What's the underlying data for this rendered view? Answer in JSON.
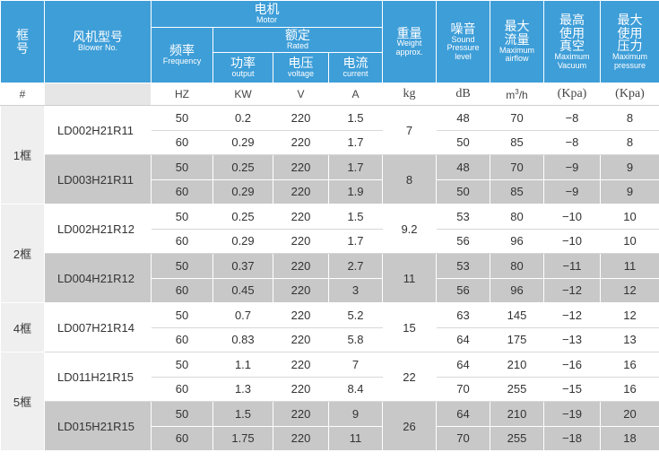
{
  "header": {
    "frame_zh": [
      "框",
      "号"
    ],
    "model_zh": "风机型号",
    "model_en": "Blower No.",
    "motor_zh": "电机",
    "motor_en": "Motor",
    "freq_zh": "频率",
    "freq_en": "Frequency",
    "rated_zh": "额定",
    "rated_en": "Rated",
    "output_zh": "功率",
    "output_en": "output",
    "voltage_zh": "电压",
    "voltage_en": "voltage",
    "current_zh": "电流",
    "current_en": "current",
    "weight_zh": "重量",
    "weight_en": "Weight approx.",
    "noise_zh": "噪音",
    "noise_en": [
      "Sound",
      "Pressure",
      "level"
    ],
    "airflow_zh": [
      "最大",
      "流量"
    ],
    "airflow_en": [
      "Maximum",
      "airflow"
    ],
    "vacuum_zh": [
      "最高",
      "使用",
      "真空"
    ],
    "vacuum_en": [
      "Maximum",
      "Vacuum"
    ],
    "pressure_zh": [
      "最大",
      "使用",
      "压力"
    ],
    "pressure_en": [
      "Maximum",
      "pressure"
    ]
  },
  "units": {
    "frame": "#",
    "freq": "HZ",
    "output": "KW",
    "voltage": "V",
    "current": "A",
    "weight": "kg",
    "noise": "dB",
    "airflow_base": "m",
    "airflow_sup": "3",
    "airflow_tail": "/h",
    "vacuum": "(Kpa)",
    "pressure": "(Kpa)"
  },
  "groups": [
    {
      "frame": "1框",
      "models": [
        {
          "model": "LD002H21R11",
          "weight": "7",
          "rows": [
            {
              "freq": "50",
              "output": "0.2",
              "voltage": "220",
              "current": "1.5",
              "noise": "48",
              "airflow": "70",
              "vacuum": "−8",
              "pressure": "8"
            },
            {
              "freq": "60",
              "output": "0.29",
              "voltage": "220",
              "current": "1.7",
              "noise": "50",
              "airflow": "85",
              "vacuum": "−8",
              "pressure": "8"
            }
          ]
        },
        {
          "model": "LD003H21R11",
          "weight": "8",
          "rows": [
            {
              "freq": "50",
              "output": "0.25",
              "voltage": "220",
              "current": "1.7",
              "noise": "48",
              "airflow": "70",
              "vacuum": "−9",
              "pressure": "9"
            },
            {
              "freq": "60",
              "output": "0.29",
              "voltage": "220",
              "current": "1.9",
              "noise": "50",
              "airflow": "85",
              "vacuum": "−9",
              "pressure": "9"
            }
          ]
        }
      ]
    },
    {
      "frame": "2框",
      "models": [
        {
          "model": "LD002H21R12",
          "weight": "9.2",
          "rows": [
            {
              "freq": "50",
              "output": "0.25",
              "voltage": "220",
              "current": "1.5",
              "noise": "53",
              "airflow": "80",
              "vacuum": "−10",
              "pressure": "10"
            },
            {
              "freq": "60",
              "output": "0.29",
              "voltage": "220",
              "current": "1.7",
              "noise": "56",
              "airflow": "96",
              "vacuum": "−10",
              "pressure": "10"
            }
          ]
        },
        {
          "model": "LD004H21R12",
          "weight": "11",
          "rows": [
            {
              "freq": "50",
              "output": "0.37",
              "voltage": "220",
              "current": "2.7",
              "noise": "53",
              "airflow": "80",
              "vacuum": "−11",
              "pressure": "11"
            },
            {
              "freq": "60",
              "output": "0.45",
              "voltage": "220",
              "current": "3",
              "noise": "56",
              "airflow": "96",
              "vacuum": "−12",
              "pressure": "12"
            }
          ]
        }
      ]
    },
    {
      "frame": "4框",
      "models": [
        {
          "model": "LD007H21R14",
          "weight": "15",
          "rows": [
            {
              "freq": "50",
              "output": "0.7",
              "voltage": "220",
              "current": "5.2",
              "noise": "63",
              "airflow": "145",
              "vacuum": "−12",
              "pressure": "12"
            },
            {
              "freq": "60",
              "output": "0.83",
              "voltage": "220",
              "current": "5.8",
              "noise": "64",
              "airflow": "175",
              "vacuum": "−13",
              "pressure": "13"
            }
          ]
        }
      ]
    },
    {
      "frame": "5框",
      "models": [
        {
          "model": "LD011H21R15",
          "weight": "22",
          "rows": [
            {
              "freq": "50",
              "output": "1.1",
              "voltage": "220",
              "current": "7",
              "noise": "64",
              "airflow": "210",
              "vacuum": "−16",
              "pressure": "16"
            },
            {
              "freq": "60",
              "output": "1.3",
              "voltage": "220",
              "current": "8.4",
              "noise": "70",
              "airflow": "255",
              "vacuum": "−15",
              "pressure": "16"
            }
          ]
        },
        {
          "model": "LD015H21R15",
          "weight": "26",
          "rows": [
            {
              "freq": "50",
              "output": "1.5",
              "voltage": "220",
              "current": "9",
              "noise": "64",
              "airflow": "210",
              "vacuum": "−19",
              "pressure": "20"
            },
            {
              "freq": "60",
              "output": "1.75",
              "voltage": "220",
              "current": "11",
              "noise": "70",
              "airflow": "255",
              "vacuum": "−18",
              "pressure": "18"
            }
          ]
        }
      ]
    }
  ],
  "colors": {
    "header": "#3e9ed8",
    "stripe_gray": "#c8c8c8",
    "frame_bg": "#efefef"
  }
}
